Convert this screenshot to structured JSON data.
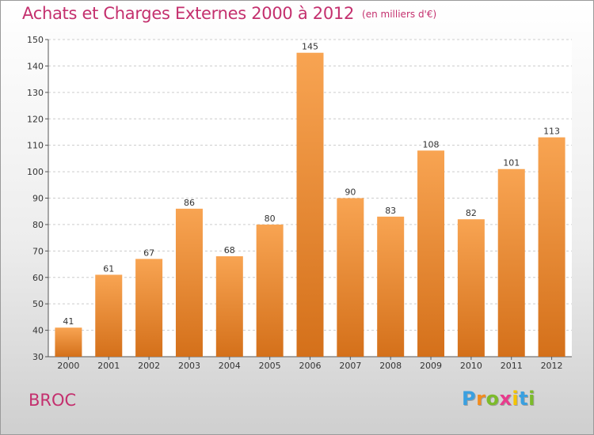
{
  "chart_data": {
    "type": "bar",
    "title": "Achats et Charges Externes 2000 à 2012",
    "unit_note": "(en milliers d'€)",
    "categories": [
      "2000",
      "2001",
      "2002",
      "2003",
      "2004",
      "2005",
      "2006",
      "2007",
      "2008",
      "2009",
      "2010",
      "2011",
      "2012"
    ],
    "values": [
      41,
      61,
      67,
      86,
      68,
      80,
      145,
      90,
      83,
      108,
      82,
      101,
      113
    ],
    "data_labels": [
      "41",
      "61",
      "67",
      "86",
      "68",
      "80",
      "145",
      "90",
      "83",
      "108",
      "82",
      "101",
      "113"
    ],
    "ylim": [
      30,
      150
    ],
    "yticks": [
      30,
      40,
      50,
      60,
      70,
      80,
      90,
      100,
      110,
      120,
      130,
      140,
      150
    ],
    "ytick_labels": [
      "30",
      "40",
      "50",
      "60",
      "70",
      "80",
      "90",
      "100",
      "110",
      "120",
      "130",
      "140",
      "150"
    ],
    "grid": true,
    "bar_color": "#f08e36",
    "legend": "none"
  },
  "place": "BROC",
  "logo": {
    "letters": [
      "P",
      "r",
      "o",
      "x",
      "i",
      "t",
      "i"
    ],
    "colors": [
      "#3aa0e0",
      "#f28c1e",
      "#7cbb2a",
      "#e83b8c",
      "#f5c400",
      "#3aa0e0",
      "#7cbb2a"
    ]
  },
  "colors": {
    "accent": "#c4306e"
  }
}
